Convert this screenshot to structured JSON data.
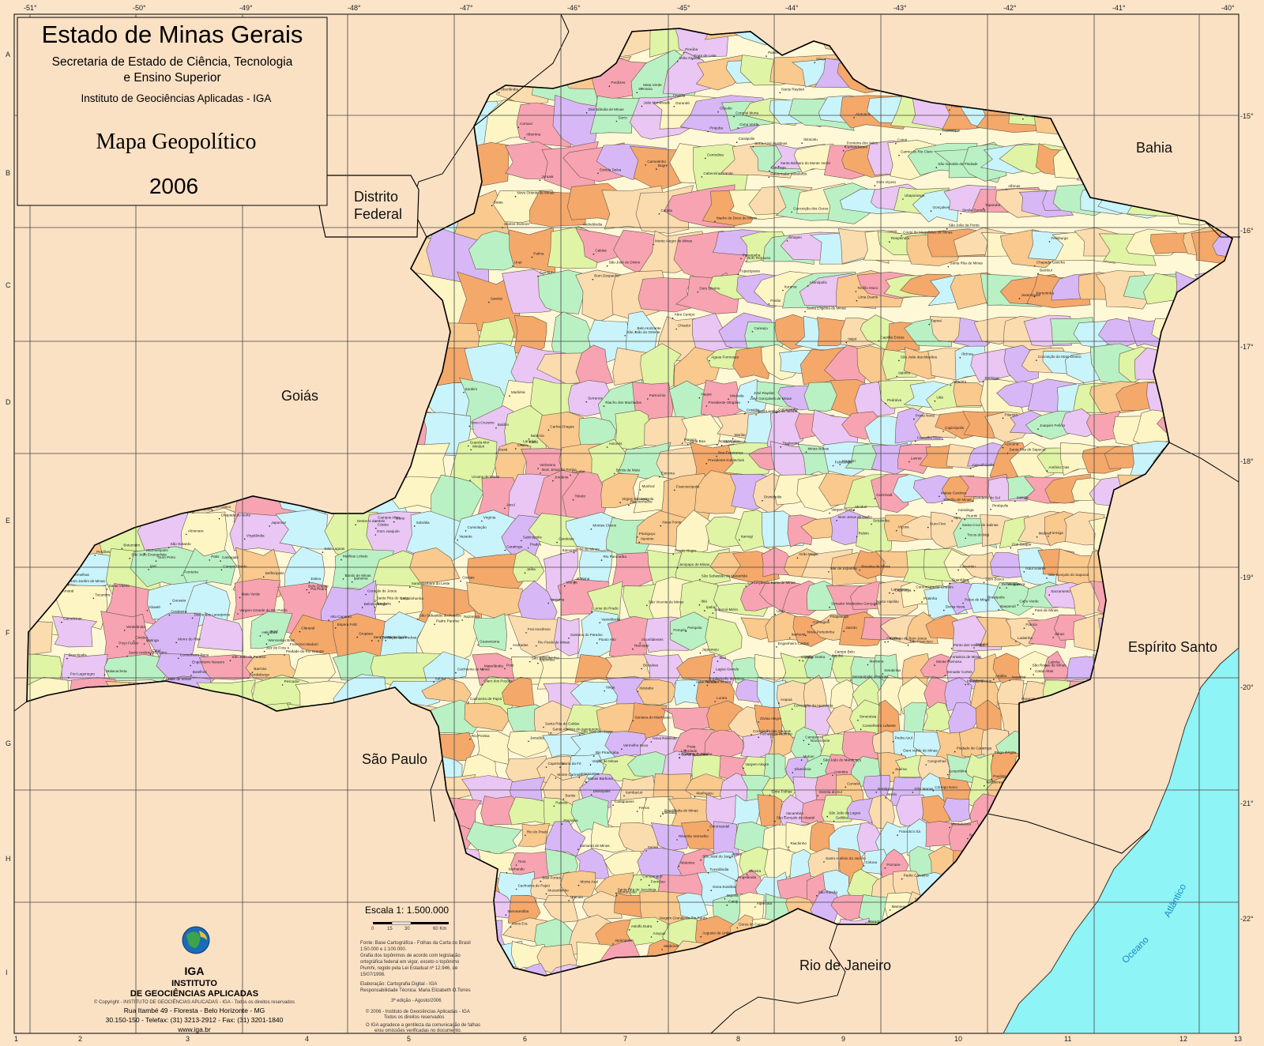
{
  "title_block": {
    "title": "Estado de Minas Gerais",
    "secretaria_line1": "Secretaria de Estado de Ciência, Tecnologia",
    "secretaria_line2": "e Ensino Superior",
    "instituto": "Instituto de Geociências Aplicadas - IGA",
    "map_name": "Mapa Geopolítico",
    "year": "2006"
  },
  "neighbors": {
    "distrito_federal_line1": "Distrito",
    "distrito_federal_line2": "Federal",
    "goias": "Goiás",
    "bahia": "Bahia",
    "sao_paulo": "São Paulo",
    "espirito_santo": "Espírito Santo",
    "rio_de_janeiro": "Rio de Janeiro",
    "ocean_word1": "Oceano",
    "ocean_word2": "Atlântico"
  },
  "longitudes": [
    "-51°",
    "-50°",
    "-49°",
    "-48°",
    "-47°",
    "-46°",
    "-45°",
    "-44°",
    "-43°",
    "-42°",
    "-41°",
    "-40°"
  ],
  "latitudes": [
    "-15°",
    "-16°",
    "-17°",
    "-18°",
    "-19°",
    "-20°",
    "-21°",
    "-22°"
  ],
  "row_letters": [
    "A",
    "B",
    "C",
    "D",
    "E",
    "F",
    "G",
    "H",
    "I"
  ],
  "col_numbers": [
    "1",
    "2",
    "3",
    "4",
    "5",
    "6",
    "7",
    "8",
    "9",
    "10",
    "11",
    "12",
    "13"
  ],
  "municipalities": [
    "Montalvânia",
    "Manga",
    "Januária",
    "Itacarambi",
    "São João das Missões",
    "Matias Cardoso",
    "Formoso",
    "Chapada Gaúcha",
    "Bonito de Minas",
    "Pedras de Maria da Cruz",
    "Varzelândia",
    "Janaúba",
    "Jaíba",
    "Espinosa",
    "Monte Azul",
    "Mato Verde",
    "Salinas",
    "Taiobeiras",
    "Rio Pardo de Minas",
    "Arinos",
    "Buritis",
    "Unaí",
    "Cabeceira Grande",
    "Riachinho",
    "Urucuia",
    "Pintópolis",
    "São Francisco",
    "Brasília de Minas",
    "Mirabela",
    "Montes Claros",
    "Coração de Jesus",
    "Francisco Sá",
    "Grão Mogol",
    "Bocaiúva",
    "Itamarandiba",
    "Capelinha",
    "Araçuaí",
    "Itaobim",
    "Medina",
    "Jequitinhonha",
    "Almenara",
    "Joaíma",
    "Salto da Divisa",
    "Jacinto",
    "Santa Maria do Salto",
    "Águas Formosas",
    "Nanuque",
    "Teófilo Otoni",
    "Pedra Azul",
    "Padre Paraíso",
    "Comercinho",
    "Bertópolis",
    "Carlos Chagas",
    "Serro",
    "Diamantina",
    "Curvelo",
    "Sete Lagoas",
    "Belo Horizonte",
    "Contagem",
    "Betim",
    "Itabira",
    "Ipatinga",
    "Governador Valadares",
    "Caratinga",
    "Manhuaçu",
    "Ponte Nova",
    "Viçosa",
    "Muriaé",
    "Ubá",
    "Juiz de Fora",
    "Barbacena",
    "São João del Rei",
    "Lavras",
    "Varginha",
    "Três Corações",
    "Pouso Alegre",
    "Poços de Caldas",
    "Passos",
    "Franca",
    "Uberaba",
    "Uberlândia",
    "Araguari",
    "Patos de Minas",
    "Patrocínio",
    "Araxá",
    "Paracatu",
    "João Pinheiro",
    "Vazante",
    "Lagoa Grande",
    "Presidente Olegário",
    "Carmo do Paranaíba",
    "Monte Carmelo",
    "Coromandel",
    "Guarda-Mor",
    "Ituiutaba",
    "Frutal",
    "Iturama",
    "Campina Verde",
    "Prata",
    "Santa Vitória",
    "Gurinhatã",
    "Limeira do Oeste",
    "União de Minas",
    "Carneirinho",
    "Conceição das Alagoas",
    "Sacramento",
    "Delta",
    "Planura",
    "Fronteira",
    "Pirajuba",
    "Campo Florido",
    "Veríssimo",
    "Tupaciguara",
    "Monte Alegre de Minas",
    "Canápolis",
    "Centralina",
    "Capinópolis",
    "Ipiaçu",
    "Estrela do Sul",
    "Cascalho Rico",
    "Grupiara",
    "Nova Ponte",
    "Perdizes",
    "Ibiá",
    "Campos Altos",
    "Bambuí",
    "Piumhi",
    "Formiga",
    "Divinópolis",
    "Itaúna",
    "Pará de Minas",
    "Bom Despacho",
    "Dores do Indaiá",
    "Abaeté",
    "Pompéu",
    "Três Marias",
    "Morada Nova de Minas",
    "Felixlândia",
    "Corinto",
    "Buenópolis",
    "Joaquim Felício",
    "Augusto de Lima",
    "Santo Hipólito",
    "Conselheiro Lafaiete",
    "Ouro Preto",
    "Mariana",
    "Itabirito",
    "Congonhas",
    "Santos Dumont",
    "Cataguases",
    "Leopoldina",
    "Além Paraíba",
    "Carangola",
    "Espera Feliz",
    "Alto Caparaó",
    "Mantena",
    "Aimorés",
    "Resplendor",
    "Conselheiro Pena",
    "Itueta",
    "Mutum",
    "Ipanema",
    "Inhapim",
    "Guanhães",
    "Peçanha",
    "Virginópolis",
    "Santa Maria do Suaçuí",
    "São João Evangelista",
    "Cantagalo",
    "Malacacheta",
    "Itambacuri",
    "Frei Gaspar",
    "Ataléia",
    "Ouro Verde de Minas",
    "Campanha",
    "Cambuí",
    "Extrema",
    "Itajubá",
    "São Lourenço",
    "Caxambu",
    "Baependi",
    "Aiuruoca",
    "Andrelândia",
    "Bom Jardim de Minas",
    "Santa Rita do Sapucaí",
    "Ouro Fino",
    "Andradas",
    "Guaxupé",
    "São Sebastião do Paraíso",
    "Alfenas",
    "Boa Esperança",
    "Campo Belo",
    "Oliveira",
    "Cláudio",
    "Itapecerica",
    "Candeias",
    "Pitangui",
    "Papagaios",
    "Paraopeba",
    "Cordisburgo",
    "Jequitibá",
    "Baldim",
    "Santana do Riacho",
    "Conceição do Mato Dentro",
    "Dom Joaquim",
    "Ferros",
    "Sabinópolis",
    "Coroaci",
    "Nacip Raydan",
    "Itanhomi",
    "Tarumirim",
    "Engenheiro Caldas",
    "Sobrália",
    "Fernandes Tourinho",
    "Alpercata",
    "Periquito",
    "Frei Inocêncio",
    "Mathias Lobato",
    "Divino das Laranjeiras",
    "Galiléia",
    "Goiabeira",
    "Cuparaque",
    "Santa Rita do Itueto",
    "Pocrane",
    "Taparuba",
    "Lajinha",
    "Chalé",
    "Durandé",
    "São João do Manhuaçu",
    "Simonésia",
    "Santana do Manhuaçu",
    "Abre Campo",
    "Rio Casca",
    "Raul Soares",
    "Vermelho Novo",
    "Sem-Peixe",
    "Dom Silvério",
    "Alvinópolis",
    "Barão de Cocais",
    "Santa Bárbara",
    "Catas Altas",
    "Rio Piracicaba",
    "João Monlevade",
    "Nova Era",
    "Antônio Dias",
    "Jaguaraçu",
    "Marliéria",
    "Timóteo",
    "Coronel Fabriciano",
    "Santana do Paraíso",
    "Belo Oriente",
    "Açucena",
    "Naque",
    "Bugre",
    "Iapu",
    "São João do Oriente",
    "Dom Cavati",
    "Entre Folhas",
    "Vargem Alegre",
    "Pingo d'Água",
    "Bom Jesus do Galho",
    "Córrego Novo",
    "Caratinga",
    "Piedade de Caratinga",
    "Ubaporanga",
    "Imbé de Minas",
    "Santa Bárbara do Leste",
    "Santa Rita de Minas",
    "Vargem Grande do Rio Pardo",
    "Rubelita",
    "Coronel Murta",
    "Virgem da Lapa",
    "Berilo",
    "José Gonçalves de Minas",
    "Leme do Prado",
    "Turmalina",
    "Minas Novas",
    "Chapada do Norte",
    "Francisco Badaró",
    "Jenipapo de Minas",
    "Angelândia",
    "Setubinha",
    "Novo Cruzeiro",
    "Caraí",
    "Ladainha",
    "Poté",
    "Itaipé",
    "Catuji",
    "Novo Oriente de Minas",
    "Pavão",
    "Crisólita",
    "Fronteira dos Vales",
    "Rio do Prado",
    "Rubim",
    "Palmópolis",
    "Bandeira",
    "Mata Verde",
    "Divisópolis",
    "Monte Formoso",
    "Felisburgo",
    "Santo Antônio do Jacinto",
    "Jordânia",
    "Cachoeira de Pajeú",
    "Itinga",
    "Ponto dos Volantes",
    "Caraí",
    "Carbonita",
    "Senador Modestino Gonçalves",
    "Couto de Magalhães de Minas",
    "Datas",
    "Gouveia",
    "Presidente Kubitschek",
    "Congonhas do Norte",
    "Morro do Pilar",
    "Santo Antônio do Itambé",
    "Serra Azul de Minas",
    "Rio Vermelho",
    "Materlândia",
    "Paulistas",
    "São Pedro do Suaçuí",
    "José Raydan",
    "São José do Jacuri",
    "Frei Lagonegro",
    "Coluna",
    "Água Boa",
    "São Sebastião do Maranhão",
    "Santa Efigênia de Minas",
    "Gonzaga",
    "Sardoá",
    "Divinolândia de Minas",
    "São Geraldo da Piedade",
    "Virgolândia",
    "Marilac",
    "Jampruca",
    "Campanário",
    "Nova Módica",
    "Pescador",
    "São José do Divino",
    "Franciscópolis",
    "Setubinha",
    "Água Boa",
    "Ipaba",
    "Ubaí",
    "Ibiracatu",
    "Japonvar",
    "Lontra",
    "Patis",
    "São João da Ponte",
    "Capitão Enéas",
    "Verdelândia",
    "Riacho dos Machados",
    "Porteirinha",
    "Nova Porteirinha",
    "Serranópolis de Minas",
    "Pai Pedro",
    "Gameleiras",
    "Catuti",
    "Mamonas",
    "Santo Antônio do Retiro",
    "Ninheira",
    "São João do Paraíso",
    "Indaiabira",
    "Vargem Grande do Rio Pardo",
    "Curral de Dentro",
    "Berizal",
    "Águas Vermelhas",
    "Divisa Alegre",
    "Cachoeira de Pajeú",
    "Santa Cruz de Salinas",
    "Novorizonte",
    "Fruta de Leite",
    "Padre Carvalho",
    "Josenópolis",
    "Cristália",
    "Botumirim",
    "Itacambira",
    "Guaraciama",
    "Olhos-d'Água",
    "Engenheiro Navarro",
    "Claro dos Poções",
    "São João da Lagoa",
    "Lagoa dos Patos",
    "Jequitaí",
    "Ibiaí",
    "Ponto Chique",
    "Santa Fé de Minas",
    "São Romão",
    "Brasilândia de Minas",
    "Bonfinópolis de Minas",
    "Dom Bosco",
    "Natalândia",
    "Uruana de Minas",
    "São Gonçalo do Abaeté",
    "Varjão de Minas",
    "Tiros",
    "Arapuá",
    "Matutina",
    "Rio Paranaíba",
    "Santa Rosa da Serra",
    "São Gotardo",
    "Córrego Danta",
    "Medeiros",
    "Tapiraí",
    "Pratinha",
    "São Roque de Minas",
    "Vargem Bonita",
    "Delfinópolis",
    "Cássia",
    "Capetinga",
    "Claraval",
    "Ibiraci",
    "Itamogi",
    "Monte Santo de Minas",
    "Jacuí",
    "Fortaleza de Minas",
    "Alpinópolis",
    "Carmo do Rio Claro",
    "Guapé",
    "Ilicínea",
    "Cristais",
    "Aguanil",
    "Santana do Jacaré",
    "Cana Verde",
    "Perdões",
    "Ribeirão Vermelho",
    "Ijaci",
    "Itumirim",
    "Ingaí",
    "Luminárias",
    "Carrancas",
    "Minduri",
    "São Vicente de Minas",
    "Madre de Deus de Minas",
    "Piedade do Rio Grande",
    "Nazareno",
    "Conceição da Barra de Minas",
    "Ritápolis",
    "Coronel Xavier Chaves",
    "Prados",
    "Tiradentes",
    "Dores de Campos",
    "Barroso",
    "Desterro do Melo",
    "Mercês",
    "Silveirânia",
    "Rio Pomba",
    "Guarani",
    "Piraúba",
    "Tocantins",
    "Rodeiro",
    "Astolfo Dutra",
    "Dona Eusébia",
    "Itamarati de Minas",
    "Laranjal",
    "Palma",
    "Pirapetinga",
    "Estrela Dalva",
    "Volta Grande",
    "Santo Antônio do Aventureiro",
    "Mar de Espanha",
    "Senador Cortes",
    "Chiador",
    "Simão Pereira",
    "Belmiro Braga",
    "Matias Barbosa",
    "Santa Bárbara do Monte Verde",
    "Rio Preto",
    "Lima Duarte",
    "Pedro Teixeira",
    "Bias Fortes",
    "Santa Rita de Jacutinga",
    "Passa Vinte",
    "Bocaina de Minas",
    "Liberdade",
    "Arantina",
    "Seritinga",
    "Serranos",
    "Cruzília",
    "Minduri",
    "Pouso Alto",
    "Itamonte",
    "Alagoa",
    "Itanhandu",
    "Passa Quatro",
    "Virgínia",
    "Dom Viçoso",
    "Cristina",
    "Maria da Fé",
    "Delfim Moreira",
    "Marmelópolis",
    "Wenceslau Braz",
    "Piranguçu",
    "Brasópolis",
    "Paraisópolis",
    "Gonçalves",
    "Sapucaí-Mirim",
    "Camanducaia",
    "Itapeva",
    "Toledo",
    "Munhoz",
    "Bom Repouso",
    "Senador Amaral",
    "Estiva",
    "Consolação",
    "Córrego do Bom Jesus",
    "Bueno Brandão",
    "Inconfidentes",
    "Borda da Mata",
    "Tocos do Moji",
    "Jacutinga",
    "Monte Sião",
    "Albertina",
    "Santa Rita de Caldas",
    "Ibitiúra de Minas",
    "Caldas",
    "Botelhos",
    "Campestre",
    "Bandeira do Sul",
    "Cabo Verde",
    "Muzambinho",
    "Juruaia",
    "Nova Resende",
    "Bom Jesus da Penha",
    "Conceição da Aparecida",
    "Divisa Nova",
    "Serrania",
    "Machado",
    "Poço Fundo",
    "Carvalhópolis",
    "Turvolândia",
    "Cordislândia",
    "São Gonçalo do Sapucaí",
    "Careaçu",
    "Heliodora",
    "Natércia",
    "Conceição das Pedras",
    "Pedralva",
    "São José do Alegre",
    "Cachoeira de Minas",
    "Conceição dos Ouros"
  ]
}
